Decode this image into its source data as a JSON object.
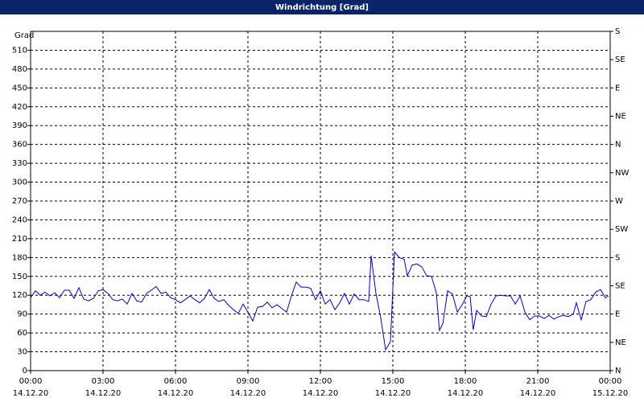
{
  "chart_data": {
    "type": "line",
    "title": "Windrichtung [Grad]",
    "y_label": "Grad",
    "x": [
      0,
      0.2,
      0.4,
      0.6,
      0.8,
      1,
      1.2,
      1.4,
      1.6,
      1.8,
      2,
      2.2,
      2.4,
      2.6,
      2.8,
      3,
      3.2,
      3.4,
      3.6,
      3.8,
      4,
      4.2,
      4.4,
      4.6,
      4.8,
      5,
      5.2,
      5.4,
      5.6,
      5.8,
      6,
      6.2,
      6.4,
      6.6,
      6.8,
      7,
      7.2,
      7.4,
      7.6,
      7.8,
      8,
      8.2,
      8.4,
      8.6,
      8.8,
      9,
      9.2,
      9.4,
      9.6,
      9.8,
      10,
      10.2,
      10.4,
      10.6,
      10.8,
      11,
      11.2,
      11.4,
      11.6,
      11.8,
      12,
      12.2,
      12.4,
      12.6,
      12.8,
      13,
      13.2,
      13.4,
      13.6,
      13.8,
      14,
      14.1,
      14.3,
      14.5,
      14.7,
      14.9,
      15.07,
      15.27,
      15.47,
      15.6,
      15.8,
      16,
      16.2,
      16.4,
      16.6,
      16.8,
      16.93,
      17.07,
      17.27,
      17.47,
      17.67,
      17.87,
      18.07,
      18.2,
      18.33,
      18.47,
      18.67,
      18.87,
      19.07,
      19.27,
      19.47,
      19.67,
      19.87,
      20.07,
      20.27,
      20.47,
      20.67,
      20.87,
      21.07,
      21.27,
      21.47,
      21.67,
      21.87,
      22.07,
      22.27,
      22.47,
      22.6,
      22.8,
      23,
      23.2,
      23.4,
      23.6,
      23.8,
      23.93
    ],
    "series": [
      {
        "name": "Windrichtung",
        "color": "#0000cc",
        "values": [
          116,
          127,
          120,
          125,
          119,
          124,
          116,
          128,
          128,
          115,
          132,
          114,
          111,
          115,
          127,
          129,
          123,
          113,
          111,
          114,
          106,
          123,
          111,
          109,
          123,
          128,
          134,
          123,
          125,
          116,
          113,
          108,
          113,
          119,
          113,
          108,
          115,
          129,
          115,
          110,
          113,
          104,
          97,
          91,
          106,
          93,
          79,
          101,
          102,
          109,
          100,
          105,
          99,
          93,
          119,
          141,
          133,
          133,
          131,
          113,
          127,
          106,
          113,
          97,
          108,
          123,
          106,
          122,
          113,
          113,
          110,
          183,
          123,
          84,
          33,
          46,
          189,
          180,
          177,
          151,
          168,
          170,
          165,
          151,
          150,
          124,
          64,
          75,
          127,
          122,
          93,
          105,
          119,
          118,
          65,
          96,
          87,
          86,
          106,
          119,
          120,
          119,
          119,
          106,
          119,
          93,
          81,
          87,
          87,
          83,
          88,
          82,
          86,
          88,
          86,
          90,
          108,
          81,
          110,
          113,
          125,
          129,
          116,
          119
        ]
      }
    ],
    "xlim": [
      0,
      24
    ],
    "xticks": [
      {
        "value": 0,
        "label": "00:00",
        "date": "14.12.20"
      },
      {
        "value": 3,
        "label": "03:00",
        "date": "14.12.20"
      },
      {
        "value": 6,
        "label": "06:00",
        "date": "14.12.20"
      },
      {
        "value": 9,
        "label": "09:00",
        "date": "14.12.20"
      },
      {
        "value": 12,
        "label": "12:00",
        "date": "14.12.20"
      },
      {
        "value": 15,
        "label": "15:00",
        "date": "14.12.20"
      },
      {
        "value": 18,
        "label": "18:00",
        "date": "14.12.20"
      },
      {
        "value": 21,
        "label": "21:00",
        "date": "14.12.20"
      },
      {
        "value": 24,
        "label": "00:00",
        "date": "15.12.20"
      }
    ],
    "ylim": [
      0,
      540
    ],
    "yticks": [
      0,
      30,
      60,
      90,
      120,
      150,
      180,
      210,
      240,
      270,
      300,
      330,
      360,
      390,
      420,
      450,
      480,
      510
    ],
    "y2lim": [
      0,
      540
    ],
    "y2ticks": [
      {
        "value": 0,
        "label": "N"
      },
      {
        "value": 45,
        "label": "NE"
      },
      {
        "value": 90,
        "label": "E"
      },
      {
        "value": 135,
        "label": "SE"
      },
      {
        "value": 180,
        "label": "S"
      },
      {
        "value": 225,
        "label": "SW"
      },
      {
        "value": 270,
        "label": "W"
      },
      {
        "value": 315,
        "label": "NW"
      },
      {
        "value": 360,
        "label": "N"
      },
      {
        "value": 405,
        "label": "NE"
      },
      {
        "value": 450,
        "label": "E"
      },
      {
        "value": 495,
        "label": "SE"
      },
      {
        "value": 540,
        "label": "S"
      }
    ],
    "grid": true
  }
}
